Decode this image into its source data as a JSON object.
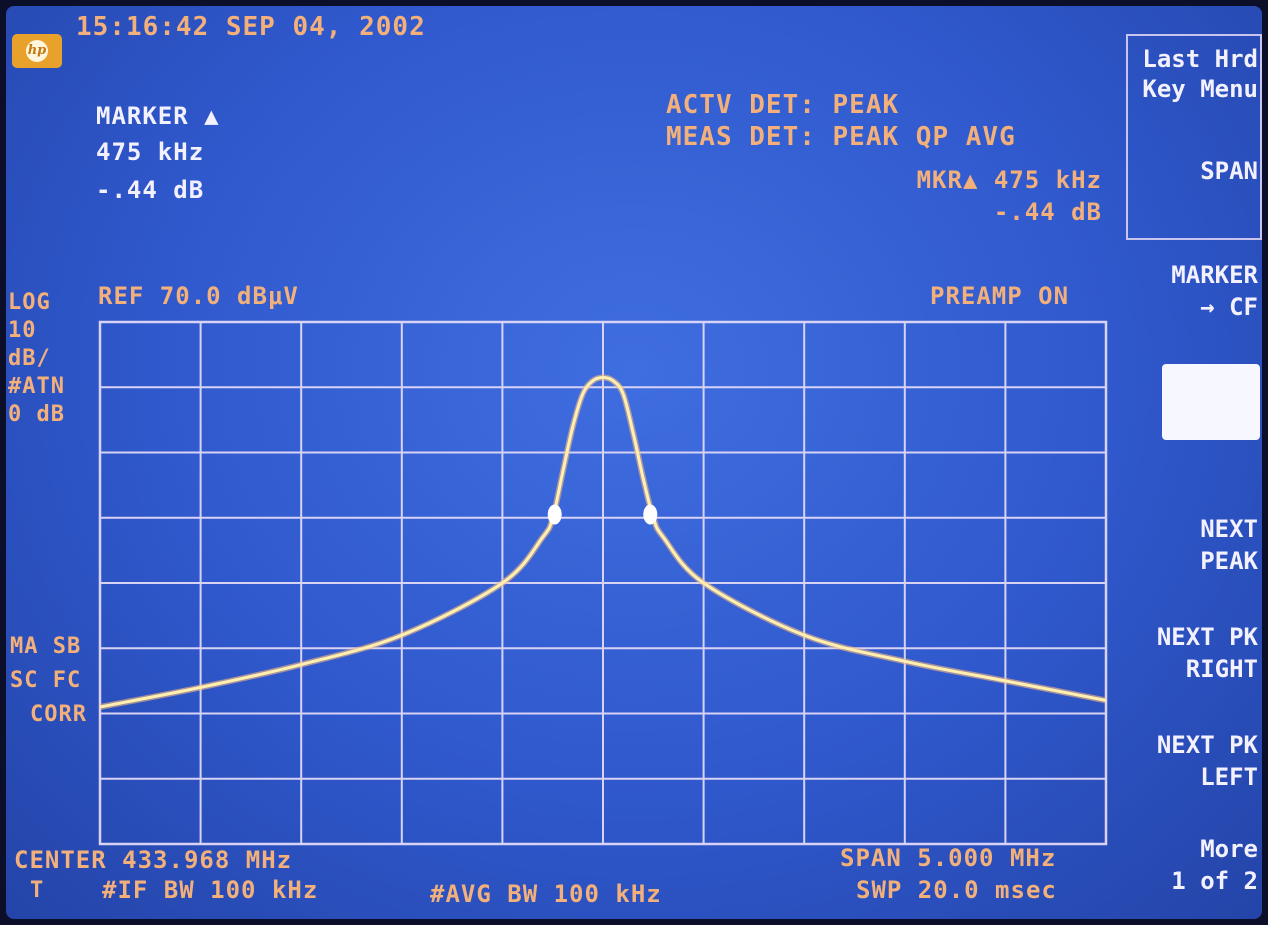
{
  "header": {
    "timestamp": "15:16:42 SEP 04, 2002",
    "logo_icon": "hp-logo-icon"
  },
  "marker_readout": {
    "label": "MARKER ▲",
    "frequency": "475 kHz",
    "level": "-.44 dB"
  },
  "detectors": {
    "actv_det": "ACTV DET: PEAK",
    "meas_det": "MEAS DET: PEAK QP AVG",
    "mkr_delta_freq": "MKR▲ 475 kHz",
    "mkr_delta_level": "-.44 dB"
  },
  "reference": {
    "ref_level": "REF 70.0 dBμV",
    "preamp": "PREAMP ON"
  },
  "left_annotations": {
    "scale": [
      "LOG",
      "10",
      "dB/",
      "#ATN",
      "0 dB"
    ],
    "correction": [
      "MA SB",
      "SC FC",
      "CORR"
    ]
  },
  "bottom": {
    "center": "CENTER 433.968 MHz",
    "span": "SPAN 5.000 MHz",
    "trace_marker": "T",
    "if_bw": "#IF BW 100 kHz",
    "avg_bw": "#AVG BW 100 kHz",
    "sweep": "SWP 20.0 msec"
  },
  "softkeys": {
    "menu_title_1": "Last Hrd",
    "menu_title_2": "Key Menu",
    "span": "SPAN",
    "marker_cf_1": "MARKER",
    "marker_cf_2": "→ CF",
    "next_peak_1": "NEXT",
    "next_peak_2": "PEAK",
    "next_pk_right_1": "NEXT PK",
    "next_pk_right_2": "RIGHT",
    "next_pk_left_1": "NEXT PK",
    "next_pk_left_2": "LEFT",
    "more_1": "More",
    "more_2": "1 of 2"
  },
  "colors": {
    "screen_blue": "#3461d6",
    "annotation_orange": "#f3b07a",
    "grid": "#d8d2f4",
    "trace": "#fff0b0"
  },
  "chart_data": {
    "type": "line",
    "ref_level_dbuv": 70.0,
    "scale_db_per_div": 10,
    "center_mhz": 433.968,
    "span_mhz": 5.0,
    "x_unit": "MHz offset from center",
    "y_unit": "dBμV",
    "xlim": [
      -2.5,
      2.5
    ],
    "ylim": [
      -10,
      70
    ],
    "grid": true,
    "x": [
      -2.5,
      -2.0,
      -1.5,
      -1.0,
      -0.5,
      -0.3,
      -0.25,
      -0.2,
      -0.15,
      -0.1,
      -0.05,
      0.0,
      0.05,
      0.1,
      0.15,
      0.2,
      0.25,
      0.3,
      0.5,
      1.0,
      1.5,
      2.0,
      2.5
    ],
    "y": [
      11,
      14,
      17.5,
      22,
      30,
      37,
      40,
      47,
      54,
      59,
      61,
      61.5,
      61,
      59,
      53,
      46,
      40,
      37,
      30,
      22,
      18,
      15,
      12
    ],
    "markers": [
      {
        "name": "marker-1",
        "x": -0.24,
        "y": 40.5
      },
      {
        "name": "marker-2",
        "x": 0.235,
        "y": 40.5
      }
    ]
  }
}
